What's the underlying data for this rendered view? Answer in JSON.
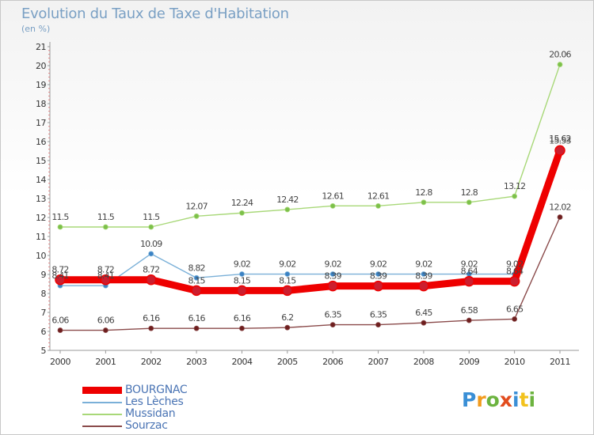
{
  "header": {
    "title": "Evolution du Taux de Taxe d'Habitation",
    "subtitle": "(en %)"
  },
  "logo": {
    "text": "Proxiti",
    "colors": [
      "#3a8fd6",
      "#f29b1d",
      "#6cb33f",
      "#e24c1e",
      "#3a8fd6",
      "#f2c21d",
      "#6cb33f"
    ]
  },
  "chart_data": {
    "type": "line",
    "title": "Evolution du Taux de Taxe d'Habitation",
    "subtitle": "(en %)",
    "xlabel": "",
    "ylabel": "",
    "ylim": [
      5,
      21
    ],
    "yticks": [
      5,
      6,
      7,
      8,
      9,
      10,
      11,
      12,
      13,
      14,
      15,
      16,
      17,
      18,
      19,
      20,
      21
    ],
    "categories": [
      "2000",
      "2001",
      "2002",
      "2003",
      "2004",
      "2005",
      "2006",
      "2007",
      "2008",
      "2009",
      "2010",
      "2011"
    ],
    "grid": false,
    "legend_position": "bottom-left",
    "series": [
      {
        "name": "BOURGNAC",
        "color": "#ee0000",
        "marker_color": "#cc1e2e",
        "emphasis": true,
        "values": [
          8.72,
          8.72,
          8.72,
          8.15,
          8.15,
          8.15,
          8.39,
          8.39,
          8.39,
          8.64,
          8.64,
          15.53
        ],
        "labels": [
          "8.72",
          "8.72",
          "8.72",
          "8.15",
          "8.15",
          "8.15",
          "8.39",
          "8.39",
          "8.39",
          "8.64",
          "8.64",
          "15.53"
        ]
      },
      {
        "name": "Les Lèches",
        "color": "#7ab0d8",
        "marker_color": "#3b82c4",
        "emphasis": false,
        "values": [
          8.41,
          8.41,
          10.09,
          8.82,
          9.02,
          9.02,
          9.02,
          9.02,
          9.02,
          9.02,
          9.02,
          15.62
        ],
        "labels": [
          "8.41",
          "8.41",
          "10.09",
          "8.82",
          "9.02",
          "9.02",
          "9.02",
          "9.02",
          "9.02",
          "9.02",
          "9.02",
          "15.62"
        ]
      },
      {
        "name": "Mussidan",
        "color": "#a8d878",
        "marker_color": "#7cc04a",
        "emphasis": false,
        "values": [
          11.5,
          11.5,
          11.5,
          12.07,
          12.24,
          12.42,
          12.61,
          12.61,
          12.8,
          12.8,
          13.12,
          20.06
        ],
        "labels": [
          "11.5",
          "11.5",
          "11.5",
          "12.07",
          "12.24",
          "12.42",
          "12.61",
          "12.61",
          "12.8",
          "12.8",
          "13.12",
          "20.06"
        ]
      },
      {
        "name": "Sourzac",
        "color": "#8a4a4a",
        "marker_color": "#6e1e1e",
        "emphasis": false,
        "values": [
          6.06,
          6.06,
          6.16,
          6.16,
          6.16,
          6.2,
          6.35,
          6.35,
          6.45,
          6.58,
          6.65,
          12.02
        ],
        "labels": [
          "6.06",
          "6.06",
          "6.16",
          "6.16",
          "6.16",
          "6.2",
          "6.35",
          "6.35",
          "6.45",
          "6.58",
          "6.65",
          "12.02"
        ]
      }
    ]
  }
}
